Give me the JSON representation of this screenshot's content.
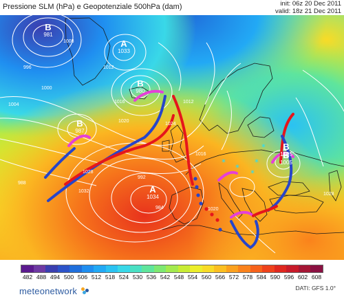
{
  "title": "Pressione SLM (hPa) e Geopotenziale 500hPa (dam)",
  "init": "init: 06z 20 Dec 2011",
  "valid": "valid: 18z 21 Dec 2011",
  "dati": "DATI: GFS 1.0°",
  "brand": "meteonetwork",
  "pressure_centers": [
    {
      "letter": "B",
      "value": "981"
    },
    {
      "letter": "A",
      "value": "1033"
    },
    {
      "letter": "B",
      "value": "980"
    },
    {
      "letter": "B",
      "value": "987"
    },
    {
      "letter": "A",
      "value": "1034"
    },
    {
      "letter": "B",
      "value": "1005"
    },
    {
      "letter": "B",
      "value": "1005"
    }
  ],
  "isobar_labels": [
    "996",
    "1000",
    "1004",
    "1008",
    "1012",
    "1016",
    "1020",
    "1024",
    "1028",
    "1032",
    "988",
    "992",
    "984",
    "1012",
    "1016",
    "1020",
    "1028"
  ],
  "scale": {
    "colors": [
      "#5b1a8f",
      "#6e3aa3",
      "#3a3fb0",
      "#2c53c9",
      "#1f6fdc",
      "#1f8ef0",
      "#22a9f5",
      "#2bc2f2",
      "#39d8e8",
      "#4ae0c3",
      "#5fe59c",
      "#7ee872",
      "#a3ea4f",
      "#c8ec35",
      "#ecee2b",
      "#f8db27",
      "#fbbf22",
      "#fba11e",
      "#fa821c",
      "#f6621b",
      "#ee421c",
      "#df281f",
      "#c81b2a",
      "#a51735",
      "#8a1142"
    ],
    "labels": [
      "482",
      "488",
      "494",
      "500",
      "506",
      "512",
      "518",
      "524",
      "530",
      "536",
      "542",
      "548",
      "554",
      "560",
      "566",
      "572",
      "578",
      "584",
      "590",
      "596",
      "602",
      "608"
    ]
  },
  "brand_dot_colors": [
    "#f5a623",
    "#2c5aa0",
    "#3ba7e0"
  ]
}
